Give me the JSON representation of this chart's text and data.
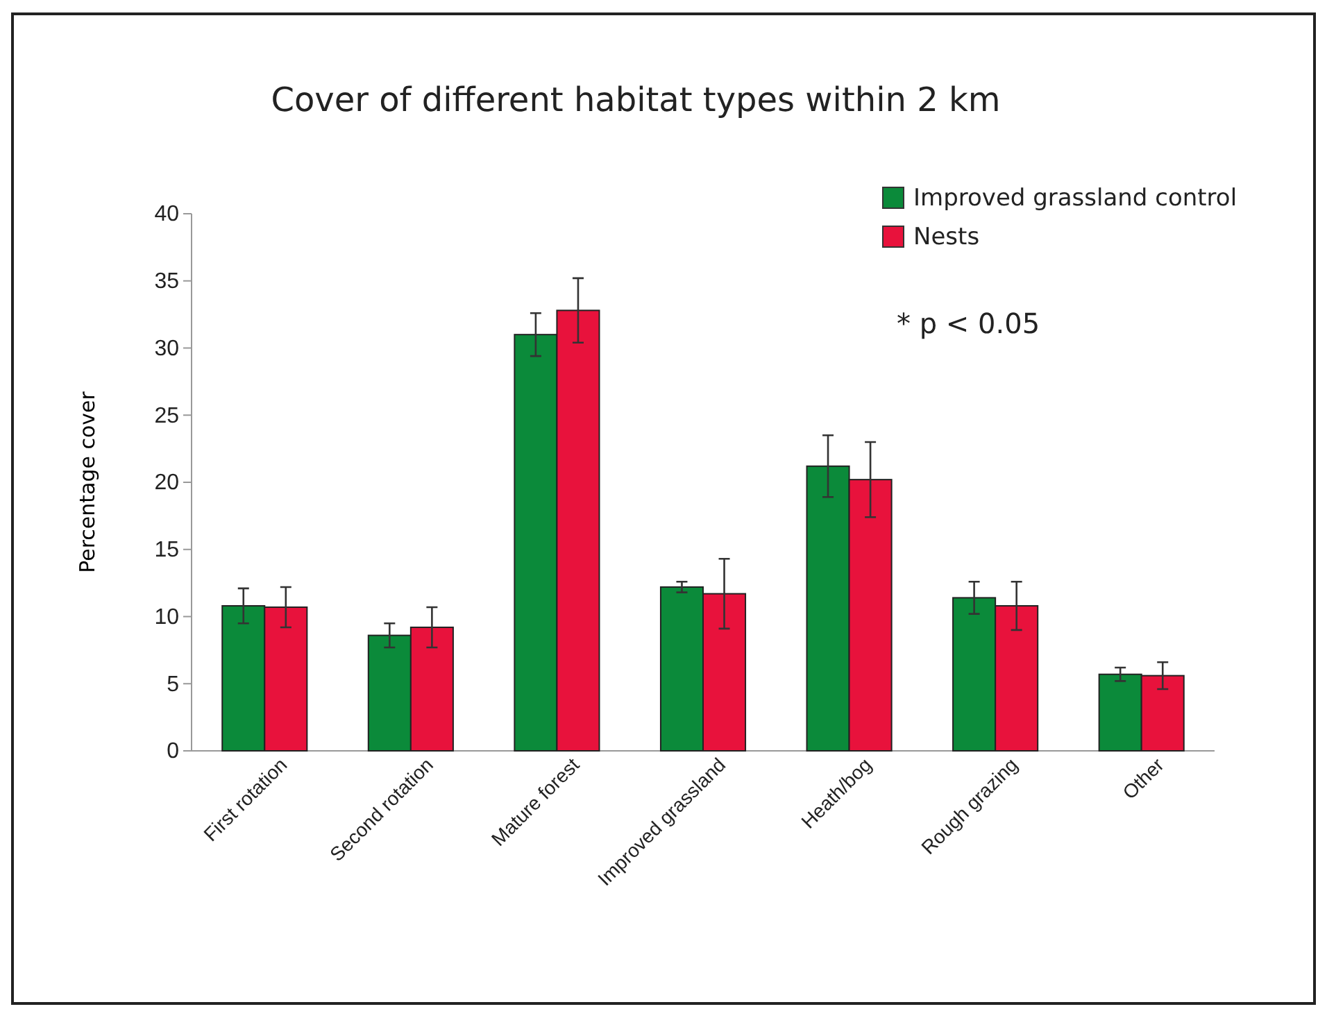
{
  "chart_data": {
    "type": "bar",
    "title": "Cover of different habitat types within 2 km",
    "ylabel": "Percentage cover",
    "categories": [
      "First rotation",
      "Second rotation",
      "Mature forest",
      "Improved grassland",
      "Heath/bog",
      "Rough grazing",
      "Other"
    ],
    "series": [
      {
        "name": "Improved grassland control",
        "color": "#0b8a3a",
        "values": [
          10.8,
          8.6,
          31.0,
          12.2,
          21.2,
          11.4,
          5.7
        ],
        "errors": [
          1.3,
          0.9,
          1.6,
          0.4,
          2.3,
          1.2,
          0.5
        ]
      },
      {
        "name": "Nests",
        "color": "#e8123c",
        "values": [
          10.7,
          9.2,
          32.8,
          11.7,
          20.2,
          10.8,
          5.6
        ],
        "errors": [
          1.5,
          1.5,
          2.4,
          2.6,
          2.8,
          1.8,
          1.0
        ]
      }
    ],
    "ylim": [
      0,
      40
    ],
    "yticks": [
      0,
      5,
      10,
      15,
      20,
      25,
      30,
      35,
      40
    ],
    "grid": false,
    "legend": "top right",
    "annotations": [
      "* p < 0.05"
    ]
  }
}
